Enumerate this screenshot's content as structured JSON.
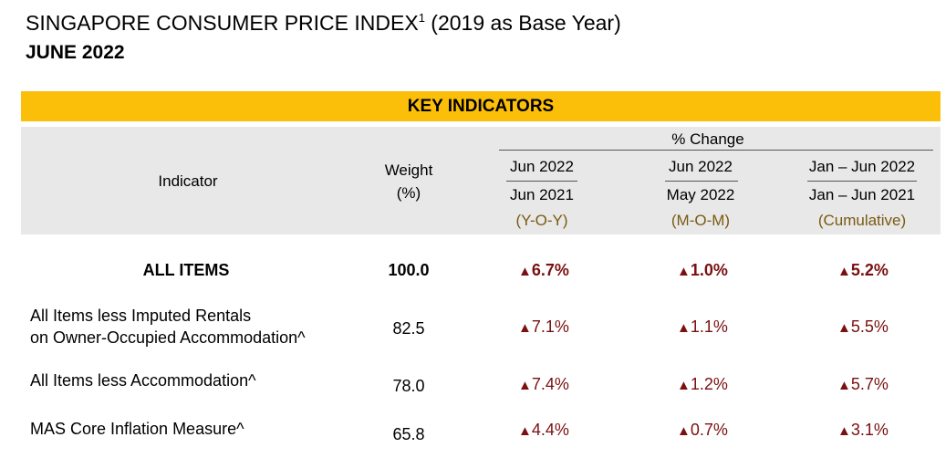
{
  "title": {
    "main": "SINGAPORE CONSUMER PRICE INDEX",
    "footnote": "1",
    "suffix": " (2019 as Base Year)",
    "period": "JUNE 2022"
  },
  "band_label": "KEY INDICATORS",
  "header": {
    "indicator": "Indicator",
    "weight_line1": "Weight",
    "weight_line2": "(%)",
    "pct_change": "% Change",
    "columns": [
      {
        "top": "Jun 2022",
        "bottom": "Jun 2021",
        "tag": "(Y-O-Y)"
      },
      {
        "top": "Jun 2022",
        "bottom": "May 2022",
        "tag": "(M-O-M)"
      },
      {
        "top": "Jan – Jun 2022",
        "bottom": "Jan – Jun 2021",
        "tag": "(Cumulative)"
      }
    ]
  },
  "arrow_symbol": "▲",
  "colors": {
    "band": "#fbbf09",
    "header_bg": "#e8e8e8",
    "change": "#7a1010",
    "tag": "#7a5a10"
  },
  "rows": [
    {
      "name": "ALL ITEMS",
      "weight": "100.0",
      "yoy": "6.7%",
      "mom": "1.0%",
      "cum": "5.2%"
    },
    {
      "name_line1": "All Items less Imputed Rentals",
      "name_line2": "on Owner-Occupied Accommodation^",
      "weight": "82.5",
      "yoy": "7.1%",
      "mom": "1.1%",
      "cum": "5.5%"
    },
    {
      "name": "All Items less Accommodation^",
      "weight": "78.0",
      "yoy": "7.4%",
      "mom": "1.2%",
      "cum": "5.7%"
    },
    {
      "name": "MAS Core Inflation Measure^",
      "weight": "65.8",
      "yoy": "4.4%",
      "mom": "0.7%",
      "cum": "3.1%"
    }
  ]
}
